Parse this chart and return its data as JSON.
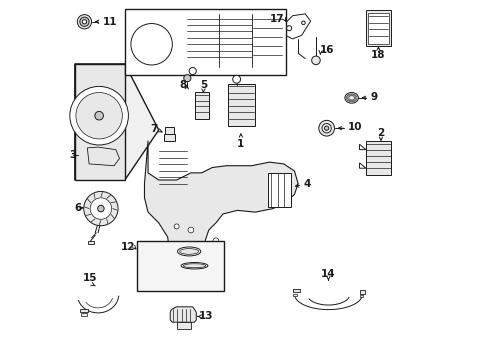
{
  "bg_color": "#ffffff",
  "lc": "#1a1a1a",
  "fl": "#e8e8e8",
  "fm": "#c8c8c8",
  "lw": 0.7,
  "figsize": [
    4.89,
    3.6
  ],
  "dpi": 100
}
